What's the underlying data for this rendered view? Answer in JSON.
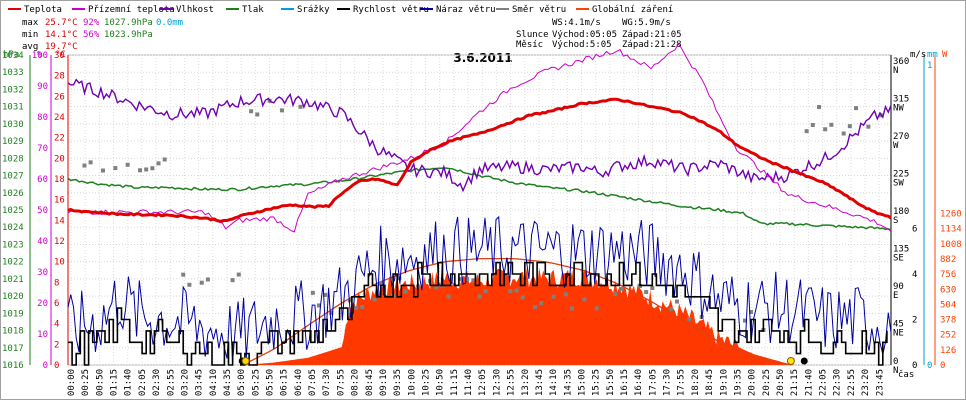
{
  "chart_data": {
    "type": "line",
    "title": "3.6.2011",
    "legend": [
      {
        "name": "Teplota",
        "color": "#e00000"
      },
      {
        "name": "Přízemní teplota",
        "color": "#cc00cc"
      },
      {
        "name": "Vlhkost",
        "color": "#7000b0"
      },
      {
        "name": "Tlak",
        "color": "#208020"
      },
      {
        "name": "Srážky",
        "color": "#00a0d0"
      },
      {
        "name": "Rychlost větru",
        "color": "#000000"
      },
      {
        "name": "Náraz větru",
        "color": "#0000a0"
      },
      {
        "name": "Směr větru",
        "color": "#808080"
      },
      {
        "name": "Globální záření",
        "color": "#ff4000"
      }
    ],
    "stats": {
      "max": {
        "label": "max",
        "temp": "25.7°C",
        "hum": "92%",
        "press": "1027.9hPa",
        "rain": "0.0mm"
      },
      "min": {
        "label": "min",
        "temp": "14.1°C",
        "hum": "56%",
        "press": "1023.9hPa"
      },
      "avg": {
        "label": "avg",
        "temp": "19.7°C"
      }
    },
    "wind": {
      "ws": "WS:4.1m/s",
      "wg": "WG:5.9m/s"
    },
    "sun": {
      "label": "Slunce",
      "rise": "Východ:05:05",
      "set": "Západ:21:05"
    },
    "moon": {
      "label": "Měsíc",
      "rise": "Východ:5:05",
      "set": "Západ:21:28"
    },
    "axes_left": [
      {
        "unit": "hPa",
        "min": 1016,
        "max": 1034,
        "step": 1,
        "color": "#208020"
      },
      {
        "unit": "%",
        "min": 0,
        "max": 100,
        "step": 10,
        "color": "#cc00cc"
      },
      {
        "unit": "°C",
        "min": 0,
        "max": 30,
        "step": 2,
        "color": "#e00000"
      }
    ],
    "axes_right": [
      {
        "unit": "m/s",
        "labels": [
          "0",
          "2",
          "4",
          "6"
        ],
        "color": "#000000"
      },
      {
        "unit": "mm",
        "labels": [
          "0",
          "1"
        ],
        "color": "#00a0d0"
      },
      {
        "unit": "W",
        "labels": [
          "0",
          "126",
          "252",
          "378",
          "504",
          "630",
          "756",
          "882",
          "1008",
          "1134",
          "1260"
        ],
        "color": "#ff4000"
      }
    ],
    "direction_labels": [
      {
        "deg": "0",
        "dir": "N"
      },
      {
        "deg": "45",
        "dir": "NE"
      },
      {
        "deg": "90",
        "dir": "E"
      },
      {
        "deg": "135",
        "dir": "SE"
      },
      {
        "deg": "180",
        "dir": "S"
      },
      {
        "deg": "225",
        "dir": "SW"
      },
      {
        "deg": "270",
        "dir": "W"
      },
      {
        "deg": "315",
        "dir": "NW"
      },
      {
        "deg": "360",
        "dir": "N"
      }
    ],
    "x_label": "čas",
    "x_ticks": [
      "00:00",
      "00:25",
      "00:50",
      "01:15",
      "01:40",
      "02:05",
      "02:30",
      "02:55",
      "03:20",
      "03:45",
      "04:10",
      "04:35",
      "05:00",
      "05:25",
      "05:50",
      "06:15",
      "06:40",
      "07:05",
      "07:30",
      "07:55",
      "08:20",
      "08:45",
      "09:10",
      "09:35",
      "10:00",
      "10:25",
      "10:50",
      "11:15",
      "11:40",
      "12:05",
      "12:30",
      "12:55",
      "13:20",
      "13:45",
      "14:10",
      "14:35",
      "15:00",
      "15:25",
      "15:50",
      "16:15",
      "16:40",
      "17:05",
      "17:30",
      "17:55",
      "18:20",
      "18:45",
      "19:10",
      "19:35",
      "20:00",
      "20:25",
      "20:50",
      "21:15",
      "21:40",
      "22:05",
      "22:30",
      "22:55",
      "23:20",
      "23:45"
    ],
    "series_points": {
      "temperature_c": [
        [
          0,
          15
        ],
        [
          1.5,
          14.6
        ],
        [
          3,
          14.5
        ],
        [
          4,
          14.2
        ],
        [
          4.6,
          13.9
        ],
        [
          5,
          14.4
        ],
        [
          5.5,
          14.8
        ],
        [
          6,
          15.2
        ],
        [
          6.5,
          15.5
        ],
        [
          7.2,
          15.3
        ],
        [
          7.6,
          15.4
        ],
        [
          7.9,
          16.4
        ],
        [
          8.5,
          17.8
        ],
        [
          9,
          18
        ],
        [
          9.6,
          17.4
        ],
        [
          10,
          19.6
        ],
        [
          10.5,
          20.7
        ],
        [
          11,
          21.5
        ],
        [
          11.5,
          22
        ],
        [
          12,
          22.4
        ],
        [
          12.5,
          23
        ],
        [
          13,
          23.6
        ],
        [
          13.5,
          24.2
        ],
        [
          14,
          24.5
        ],
        [
          14.5,
          24.9
        ],
        [
          15,
          25.3
        ],
        [
          15.5,
          25.5
        ],
        [
          16,
          25.7
        ],
        [
          16.5,
          25.4
        ],
        [
          17,
          25
        ],
        [
          17.5,
          24.7
        ],
        [
          18,
          24.3
        ],
        [
          18.5,
          23.5
        ],
        [
          19,
          22.6
        ],
        [
          19.5,
          21.3
        ],
        [
          20,
          20.4
        ],
        [
          20.5,
          19.6
        ],
        [
          21,
          19
        ],
        [
          21.5,
          18.3
        ],
        [
          22,
          17.7
        ],
        [
          22.5,
          16.8
        ],
        [
          23,
          15.7
        ],
        [
          23.5,
          14.8
        ],
        [
          24,
          14.3
        ]
      ],
      "ground_temp_c": [
        [
          0,
          14.8
        ],
        [
          4,
          14.8
        ],
        [
          4.6,
          13.3
        ],
        [
          5,
          14
        ],
        [
          6,
          14.2
        ],
        [
          6.6,
          13
        ],
        [
          7,
          16.5
        ],
        [
          8,
          18
        ],
        [
          9,
          19
        ],
        [
          10,
          20
        ],
        [
          11,
          21.5
        ],
        [
          12,
          24.5
        ],
        [
          13,
          27
        ],
        [
          14,
          28.5
        ],
        [
          15,
          29.5
        ],
        [
          16,
          30.5
        ],
        [
          17,
          28.7
        ],
        [
          17.8,
          31
        ],
        [
          18.5,
          27.5
        ],
        [
          19,
          24
        ],
        [
          19.5,
          21
        ],
        [
          20,
          19.5
        ],
        [
          20.5,
          18
        ],
        [
          21,
          16.5
        ],
        [
          22,
          15.5
        ],
        [
          23,
          14.5
        ],
        [
          23.6,
          13.8
        ],
        [
          24,
          13
        ]
      ],
      "humidity_pct": [
        [
          0,
          91
        ],
        [
          1,
          88
        ],
        [
          2,
          84
        ],
        [
          3,
          81
        ],
        [
          4,
          81
        ],
        [
          5,
          85
        ],
        [
          6,
          86
        ],
        [
          7,
          85
        ],
        [
          8,
          81
        ],
        [
          9,
          70
        ],
        [
          10,
          63
        ],
        [
          11,
          62
        ],
        [
          11.5,
          58
        ],
        [
          12,
          63
        ],
        [
          13,
          64
        ],
        [
          14,
          63
        ],
        [
          15,
          64
        ],
        [
          15.5,
          62
        ],
        [
          16,
          64
        ],
        [
          17,
          66
        ],
        [
          18,
          63
        ],
        [
          19,
          65
        ],
        [
          20,
          60
        ],
        [
          21,
          61
        ],
        [
          21.5,
          64
        ],
        [
          22,
          66
        ],
        [
          22.5,
          70
        ],
        [
          23,
          75
        ],
        [
          23.5,
          80
        ],
        [
          24,
          82
        ]
      ],
      "pressure_hpa": [
        [
          0,
          1026.8
        ],
        [
          1,
          1026.5
        ],
        [
          2,
          1026.3
        ],
        [
          3,
          1026.3
        ],
        [
          4,
          1026.2
        ],
        [
          5,
          1026.2
        ],
        [
          6,
          1026.4
        ],
        [
          7,
          1026.5
        ],
        [
          8,
          1026.7
        ],
        [
          9,
          1027
        ],
        [
          10,
          1027.3
        ],
        [
          11,
          1027.5
        ],
        [
          12,
          1027
        ],
        [
          13,
          1026.6
        ],
        [
          14,
          1026.3
        ],
        [
          15,
          1026.1
        ],
        [
          16,
          1025.8
        ],
        [
          17,
          1025.5
        ],
        [
          18,
          1025.2
        ],
        [
          19,
          1025
        ],
        [
          19.7,
          1024.8
        ],
        [
          20.2,
          1024.2
        ],
        [
          21,
          1024.2
        ],
        [
          22,
          1024.1
        ],
        [
          23,
          1024
        ],
        [
          24,
          1023.9
        ]
      ],
      "wind_speed_ms": [
        [
          0,
          0.5
        ],
        [
          1,
          1
        ],
        [
          1.5,
          2
        ],
        [
          2,
          1.2
        ],
        [
          3,
          1
        ],
        [
          4,
          0.6
        ],
        [
          5,
          0.3
        ],
        [
          6,
          1
        ],
        [
          7,
          1.2
        ],
        [
          8,
          2
        ],
        [
          9,
          3.5
        ],
        [
          10,
          3.8
        ],
        [
          11,
          4
        ],
        [
          12,
          4
        ],
        [
          13,
          4
        ],
        [
          14,
          4
        ],
        [
          15,
          4
        ],
        [
          16,
          4
        ],
        [
          17,
          3.8
        ],
        [
          18,
          3.2
        ],
        [
          19,
          1.8
        ],
        [
          20,
          1.5
        ],
        [
          21,
          1.5
        ],
        [
          22,
          1
        ],
        [
          23,
          1
        ],
        [
          24,
          0.8
        ]
      ],
      "radiation_w": [
        [
          5.1,
          0
        ],
        [
          6,
          20
        ],
        [
          7,
          60
        ],
        [
          8,
          150
        ],
        [
          8.2,
          500
        ],
        [
          9,
          640
        ],
        [
          10,
          680
        ],
        [
          11,
          720
        ],
        [
          12,
          700
        ],
        [
          13,
          740
        ],
        [
          14,
          720
        ],
        [
          15,
          740
        ],
        [
          16,
          680
        ],
        [
          17,
          560
        ],
        [
          18,
          420
        ],
        [
          19,
          220
        ],
        [
          20,
          90
        ],
        [
          21,
          10
        ],
        [
          21.2,
          0
        ]
      ],
      "clear_sky_w": [
        [
          5.1,
          0
        ],
        [
          6,
          130
        ],
        [
          7,
          330
        ],
        [
          8,
          520
        ],
        [
          9,
          680
        ],
        [
          10,
          790
        ],
        [
          11,
          860
        ],
        [
          12,
          885
        ],
        [
          13,
          885
        ],
        [
          14,
          855
        ],
        [
          15,
          790
        ],
        [
          16,
          680
        ],
        [
          17,
          530
        ],
        [
          18,
          360
        ],
        [
          19,
          190
        ],
        [
          20,
          60
        ],
        [
          21.1,
          0
        ]
      ]
    }
  }
}
